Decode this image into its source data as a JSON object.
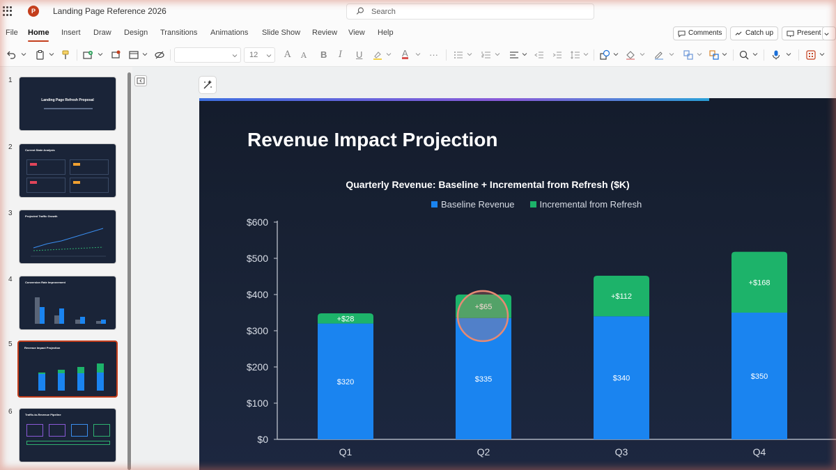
{
  "app": {
    "doc_title": "Landing Page Reference 2026",
    "search_placeholder": "Search"
  },
  "menu": {
    "tabs": [
      "File",
      "Home",
      "Insert",
      "Draw",
      "Design",
      "Transitions",
      "Animations",
      "Slide Show",
      "Review",
      "View",
      "Help"
    ],
    "active_tab": "Home",
    "comments_label": "Comments",
    "catchup_label": "Catch up",
    "present_label": "Present"
  },
  "toolbar": {
    "font_size": "12"
  },
  "thumbnails": [
    {
      "num": "1",
      "title": "Landing Page Refresh Proposal"
    },
    {
      "num": "2",
      "title": "Current State Analysis"
    },
    {
      "num": "3",
      "title": "Projected Traffic Growth"
    },
    {
      "num": "4",
      "title": "Conversion Rate Improvement"
    },
    {
      "num": "5",
      "title": "Revenue Impact Projection"
    },
    {
      "num": "6",
      "title": "Traffic-to-Revenue Pipeline"
    }
  ],
  "selected_slide": "5",
  "slide": {
    "title": "Revenue Impact Projection"
  },
  "colors": {
    "baseline": "#1a84f0",
    "incremental": "#1db36a",
    "accent": "#c43e1c"
  },
  "chart_data": {
    "type": "bar",
    "stacked": true,
    "title": "Quarterly Revenue: Baseline + Incremental from Refresh ($K)",
    "categories": [
      "Q1",
      "Q2",
      "Q3",
      "Q4"
    ],
    "series": [
      {
        "name": "Baseline Revenue",
        "values": [
          320,
          335,
          340,
          350
        ],
        "labels": [
          "$320",
          "$335",
          "$340",
          "$350"
        ]
      },
      {
        "name": "Incremental from Refresh",
        "values": [
          28,
          65,
          112,
          168
        ],
        "labels": [
          "+$28",
          "+$65",
          "+$112",
          "+$168"
        ]
      }
    ],
    "y_ticks": [
      "$0",
      "$100",
      "$200",
      "$300",
      "$400",
      "$500",
      "$600"
    ],
    "ylim": [
      0,
      600
    ],
    "legend_position": "top",
    "highlighted_category": "Q2"
  }
}
